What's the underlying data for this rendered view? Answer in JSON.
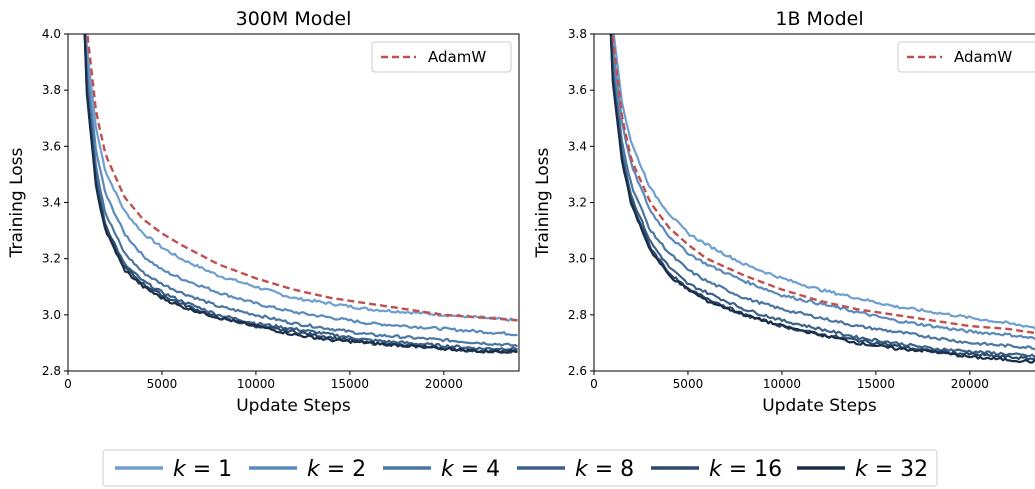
{
  "chart_data": [
    {
      "type": "line",
      "title": "300M Model",
      "xlabel": "Update Steps",
      "ylabel": "Training Loss",
      "xlim": [
        0,
        24000
      ],
      "ylim": [
        2.8,
        4.0
      ],
      "xticks": [
        0,
        5000,
        10000,
        15000,
        20000
      ],
      "xtick_labels": [
        "0",
        "5000",
        "10000",
        "15000",
        "20000"
      ],
      "yticks": [
        2.8,
        3.0,
        3.2,
        3.4,
        3.6,
        3.8,
        4.0
      ],
      "ytick_labels": [
        "2.8",
        "3.0",
        "3.2",
        "3.4",
        "3.6",
        "3.8",
        "4.0"
      ],
      "grid": false,
      "legend": {
        "placement": "top-right",
        "entries": [
          "AdamW"
        ]
      },
      "x": [
        1000,
        1500,
        2000,
        3000,
        4000,
        5000,
        6000,
        8000,
        10000,
        12000,
        14000,
        16000,
        18000,
        20000,
        22000,
        24000
      ],
      "series": [
        {
          "name": "AdamW",
          "color": "#c0504d",
          "dash": true,
          "values": [
            4.02,
            3.72,
            3.57,
            3.42,
            3.34,
            3.29,
            3.25,
            3.18,
            3.13,
            3.09,
            3.06,
            3.04,
            3.02,
            3.0,
            2.99,
            2.98
          ]
        },
        {
          "name": "k = 1",
          "color": "#6e9fcf",
          "values": [
            3.96,
            3.66,
            3.51,
            3.37,
            3.29,
            3.24,
            3.2,
            3.14,
            3.1,
            3.06,
            3.04,
            3.02,
            3.01,
            3.0,
            2.99,
            2.98
          ]
        },
        {
          "name": "k = 2",
          "color": "#5a8abb",
          "values": [
            3.9,
            3.58,
            3.43,
            3.29,
            3.21,
            3.16,
            3.13,
            3.08,
            3.04,
            3.01,
            2.99,
            2.97,
            2.96,
            2.95,
            2.94,
            2.93
          ]
        },
        {
          "name": "k = 4",
          "color": "#4a76a2",
          "values": [
            3.86,
            3.52,
            3.36,
            3.22,
            3.15,
            3.11,
            3.08,
            3.03,
            3.0,
            2.97,
            2.95,
            2.93,
            2.92,
            2.91,
            2.9,
            2.89
          ]
        },
        {
          "name": "k = 8",
          "color": "#3b6188",
          "values": [
            3.82,
            3.48,
            3.32,
            3.18,
            3.12,
            3.08,
            3.05,
            3.0,
            2.97,
            2.95,
            2.93,
            2.91,
            2.9,
            2.89,
            2.88,
            2.88
          ]
        },
        {
          "name": "k = 16",
          "color": "#2b4a6c",
          "values": [
            3.8,
            3.46,
            3.31,
            3.17,
            3.11,
            3.07,
            3.04,
            2.99,
            2.96,
            2.94,
            2.92,
            2.9,
            2.89,
            2.88,
            2.87,
            2.87
          ]
        },
        {
          "name": "k = 32",
          "color": "#1a2e47",
          "values": [
            3.79,
            3.45,
            3.3,
            3.16,
            3.1,
            3.06,
            3.03,
            2.99,
            2.96,
            2.93,
            2.91,
            2.9,
            2.89,
            2.88,
            2.87,
            2.87
          ]
        }
      ]
    },
    {
      "type": "line",
      "title": "1B Model",
      "xlabel": "Update Steps",
      "ylabel": "Training Loss",
      "xlim": [
        0,
        24000
      ],
      "ylim": [
        2.6,
        3.8
      ],
      "xticks": [
        0,
        5000,
        10000,
        15000,
        20000
      ],
      "xtick_labels": [
        "0",
        "5000",
        "10000",
        "15000",
        "20000"
      ],
      "yticks": [
        2.6,
        2.8,
        3.0,
        3.2,
        3.4,
        3.6,
        3.8
      ],
      "ytick_labels": [
        "2.6",
        "2.8",
        "3.0",
        "3.2",
        "3.4",
        "3.6",
        "3.8"
      ],
      "grid": false,
      "legend": {
        "placement": "top-right",
        "entries": [
          "AdamW"
        ]
      },
      "x": [
        1000,
        1500,
        2000,
        3000,
        4000,
        5000,
        6000,
        8000,
        10000,
        12000,
        14000,
        16000,
        18000,
        20000,
        22000,
        24000
      ],
      "series": [
        {
          "name": "AdamW",
          "color": "#c0504d",
          "dash": true,
          "values": [
            3.79,
            3.5,
            3.35,
            3.2,
            3.11,
            3.05,
            3.0,
            2.94,
            2.89,
            2.85,
            2.82,
            2.8,
            2.78,
            2.76,
            2.75,
            2.73
          ]
        },
        {
          "name": "k = 1",
          "color": "#6e9fcf",
          "values": [
            3.83,
            3.55,
            3.41,
            3.25,
            3.16,
            3.09,
            3.05,
            2.98,
            2.93,
            2.89,
            2.86,
            2.83,
            2.81,
            2.79,
            2.77,
            2.75
          ]
        },
        {
          "name": "k = 2",
          "color": "#5a8abb",
          "values": [
            3.76,
            3.48,
            3.33,
            3.17,
            3.08,
            3.02,
            2.98,
            2.92,
            2.87,
            2.84,
            2.81,
            2.78,
            2.76,
            2.74,
            2.73,
            2.71
          ]
        },
        {
          "name": "k = 4",
          "color": "#4a76a2",
          "values": [
            3.7,
            3.41,
            3.26,
            3.1,
            3.02,
            2.96,
            2.92,
            2.86,
            2.82,
            2.79,
            2.76,
            2.74,
            2.72,
            2.7,
            2.69,
            2.68
          ]
        },
        {
          "name": "k = 8",
          "color": "#3b6188",
          "values": [
            3.66,
            3.37,
            3.22,
            3.06,
            2.97,
            2.91,
            2.88,
            2.82,
            2.78,
            2.75,
            2.72,
            2.7,
            2.68,
            2.67,
            2.66,
            2.65
          ]
        },
        {
          "name": "k = 16",
          "color": "#2b4a6c",
          "values": [
            3.64,
            3.35,
            3.2,
            3.04,
            2.95,
            2.89,
            2.86,
            2.8,
            2.76,
            2.73,
            2.71,
            2.69,
            2.67,
            2.66,
            2.65,
            2.64
          ]
        },
        {
          "name": "k = 32",
          "color": "#1a2e47",
          "values": [
            3.63,
            3.34,
            3.19,
            3.03,
            2.94,
            2.89,
            2.85,
            2.8,
            2.76,
            2.73,
            2.7,
            2.68,
            2.67,
            2.65,
            2.64,
            2.63
          ]
        }
      ]
    }
  ],
  "bottom_legend": {
    "entries": [
      {
        "label": "k = 1",
        "color": "#6e9fcf"
      },
      {
        "label": "k = 2",
        "color": "#5a8abb"
      },
      {
        "label": "k = 4",
        "color": "#4a76a2"
      },
      {
        "label": "k = 8",
        "color": "#3b6188"
      },
      {
        "label": "k = 16",
        "color": "#2b4a6c"
      },
      {
        "label": "k = 32",
        "color": "#1a2e47"
      }
    ]
  }
}
